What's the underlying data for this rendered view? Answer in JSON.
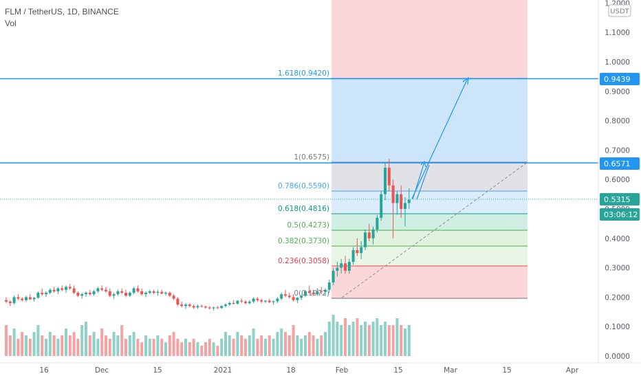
{
  "header": {
    "symbol_line": "FLM / TetherUS, 1D, BINANCE",
    "volume_label": "Vol"
  },
  "currency_badge": "USDT",
  "price_scale": {
    "ticks": [
      "1.2000",
      "1.1000",
      "1.0000",
      "0.9000",
      "0.8000",
      "0.7000",
      "0.6000",
      "0.5000",
      "0.4000",
      "0.3000",
      "0.2000",
      "0.1000",
      "0.0000"
    ],
    "tags": [
      {
        "text": "0.9439",
        "color": "#2196f3"
      },
      {
        "text": "0.6571",
        "color": "#2196f3"
      },
      {
        "text": "0.5315",
        "color": "#26a69a"
      },
      {
        "text": "03:06:12",
        "color": "#26a69a"
      }
    ]
  },
  "time_scale": {
    "labels": [
      "16",
      "Dec",
      "15",
      "2021",
      "18",
      "Feb",
      "15",
      "Mar",
      "15",
      "Apr"
    ]
  },
  "fib_levels": [
    {
      "label": "1.618(0.9420)",
      "color": "#2196f3"
    },
    {
      "label": "1(0.6575)",
      "color": "#787b86"
    },
    {
      "label": "0.786(0.5590)",
      "color": "#42a5f5"
    },
    {
      "label": "0.618(0.4816)",
      "color": "#089981"
    },
    {
      "label": "0.5(0.4273)",
      "color": "#4caf50"
    },
    {
      "label": "0.382(0.3730)",
      "color": "#4caf50"
    },
    {
      "label": "0.236(0.3058)",
      "color": "#f23645"
    },
    {
      "label": "0(0.1972)",
      "color": "#787b86"
    }
  ],
  "colors": {
    "up": "#26a69a",
    "down": "#ef5350",
    "accent": "#2196f3"
  },
  "chart_data": {
    "type": "candlestick",
    "x_start": "2020-11-04",
    "candles": [
      [
        0.19,
        0.2,
        0.18,
        0.185
      ],
      [
        0.185,
        0.19,
        0.17,
        0.18
      ],
      [
        0.18,
        0.205,
        0.175,
        0.2
      ],
      [
        0.2,
        0.21,
        0.19,
        0.195
      ],
      [
        0.195,
        0.2,
        0.185,
        0.19
      ],
      [
        0.19,
        0.205,
        0.185,
        0.2
      ],
      [
        0.2,
        0.21,
        0.19,
        0.193
      ],
      [
        0.193,
        0.2,
        0.185,
        0.198
      ],
      [
        0.198,
        0.22,
        0.195,
        0.215
      ],
      [
        0.215,
        0.23,
        0.205,
        0.21
      ],
      [
        0.21,
        0.22,
        0.2,
        0.215
      ],
      [
        0.215,
        0.23,
        0.21,
        0.225
      ],
      [
        0.225,
        0.235,
        0.215,
        0.22
      ],
      [
        0.22,
        0.235,
        0.21,
        0.23
      ],
      [
        0.23,
        0.24,
        0.22,
        0.225
      ],
      [
        0.225,
        0.24,
        0.215,
        0.235
      ],
      [
        0.235,
        0.245,
        0.225,
        0.23
      ],
      [
        0.23,
        0.24,
        0.21,
        0.215
      ],
      [
        0.215,
        0.22,
        0.2,
        0.205
      ],
      [
        0.205,
        0.215,
        0.195,
        0.21
      ],
      [
        0.21,
        0.22,
        0.2,
        0.215
      ],
      [
        0.215,
        0.225,
        0.205,
        0.21
      ],
      [
        0.21,
        0.225,
        0.205,
        0.22
      ],
      [
        0.22,
        0.235,
        0.215,
        0.23
      ],
      [
        0.23,
        0.24,
        0.22,
        0.225
      ],
      [
        0.225,
        0.235,
        0.215,
        0.22
      ],
      [
        0.22,
        0.23,
        0.2,
        0.205
      ],
      [
        0.205,
        0.215,
        0.195,
        0.21
      ],
      [
        0.21,
        0.225,
        0.205,
        0.22
      ],
      [
        0.22,
        0.23,
        0.21,
        0.215
      ],
      [
        0.215,
        0.225,
        0.2,
        0.205
      ],
      [
        0.205,
        0.22,
        0.2,
        0.215
      ],
      [
        0.215,
        0.235,
        0.21,
        0.23
      ],
      [
        0.23,
        0.24,
        0.215,
        0.22
      ],
      [
        0.22,
        0.23,
        0.205,
        0.21
      ],
      [
        0.21,
        0.22,
        0.2,
        0.215
      ],
      [
        0.215,
        0.225,
        0.21,
        0.22
      ],
      [
        0.22,
        0.225,
        0.21,
        0.215
      ],
      [
        0.215,
        0.225,
        0.205,
        0.218
      ],
      [
        0.218,
        0.225,
        0.21,
        0.212
      ],
      [
        0.212,
        0.22,
        0.205,
        0.215
      ],
      [
        0.215,
        0.22,
        0.2,
        0.205
      ],
      [
        0.205,
        0.21,
        0.19,
        0.195
      ],
      [
        0.195,
        0.2,
        0.17,
        0.175
      ],
      [
        0.175,
        0.185,
        0.165,
        0.17
      ],
      [
        0.17,
        0.18,
        0.16,
        0.175
      ],
      [
        0.175,
        0.18,
        0.165,
        0.17
      ],
      [
        0.17,
        0.175,
        0.16,
        0.165
      ],
      [
        0.165,
        0.175,
        0.16,
        0.17
      ],
      [
        0.17,
        0.175,
        0.165,
        0.168
      ],
      [
        0.168,
        0.172,
        0.16,
        0.165
      ],
      [
        0.165,
        0.17,
        0.158,
        0.162
      ],
      [
        0.162,
        0.168,
        0.155,
        0.165
      ],
      [
        0.165,
        0.17,
        0.16,
        0.163
      ],
      [
        0.163,
        0.172,
        0.16,
        0.17
      ],
      [
        0.17,
        0.18,
        0.165,
        0.175
      ],
      [
        0.175,
        0.185,
        0.17,
        0.18
      ],
      [
        0.18,
        0.19,
        0.175,
        0.178
      ],
      [
        0.178,
        0.19,
        0.175,
        0.188
      ],
      [
        0.188,
        0.195,
        0.18,
        0.185
      ],
      [
        0.185,
        0.19,
        0.175,
        0.18
      ],
      [
        0.18,
        0.19,
        0.175,
        0.185
      ],
      [
        0.185,
        0.2,
        0.18,
        0.195
      ],
      [
        0.195,
        0.2,
        0.185,
        0.19
      ],
      [
        0.19,
        0.195,
        0.18,
        0.185
      ],
      [
        0.185,
        0.19,
        0.18,
        0.188
      ],
      [
        0.188,
        0.195,
        0.18,
        0.183
      ],
      [
        0.183,
        0.19,
        0.175,
        0.186
      ],
      [
        0.186,
        0.2,
        0.18,
        0.195
      ],
      [
        0.195,
        0.215,
        0.19,
        0.21
      ],
      [
        0.21,
        0.225,
        0.2,
        0.205
      ],
      [
        0.205,
        0.215,
        0.195,
        0.2
      ],
      [
        0.2,
        0.21,
        0.185,
        0.19
      ],
      [
        0.19,
        0.2,
        0.18,
        0.198
      ],
      [
        0.198,
        0.21,
        0.19,
        0.205
      ],
      [
        0.205,
        0.225,
        0.2,
        0.22
      ],
      [
        0.22,
        0.24,
        0.21,
        0.215
      ],
      [
        0.215,
        0.225,
        0.205,
        0.21
      ],
      [
        0.21,
        0.23,
        0.205,
        0.22
      ],
      [
        0.22,
        0.235,
        0.21,
        0.218
      ],
      [
        0.218,
        0.23,
        0.205,
        0.225
      ],
      [
        0.225,
        0.26,
        0.215,
        0.25
      ],
      [
        0.25,
        0.3,
        0.24,
        0.29
      ],
      [
        0.29,
        0.32,
        0.27,
        0.3
      ],
      [
        0.3,
        0.33,
        0.28,
        0.315
      ],
      [
        0.315,
        0.34,
        0.28,
        0.29
      ],
      [
        0.29,
        0.33,
        0.28,
        0.32
      ],
      [
        0.32,
        0.37,
        0.31,
        0.36
      ],
      [
        0.36,
        0.4,
        0.34,
        0.35
      ],
      [
        0.35,
        0.39,
        0.33,
        0.37
      ],
      [
        0.37,
        0.43,
        0.36,
        0.42
      ],
      [
        0.42,
        0.45,
        0.39,
        0.4
      ],
      [
        0.4,
        0.44,
        0.38,
        0.43
      ],
      [
        0.43,
        0.48,
        0.42,
        0.47
      ],
      [
        0.47,
        0.56,
        0.46,
        0.55
      ],
      [
        0.55,
        0.66,
        0.53,
        0.64
      ],
      [
        0.64,
        0.67,
        0.56,
        0.58
      ],
      [
        0.58,
        0.6,
        0.4,
        0.52
      ],
      [
        0.52,
        0.56,
        0.48,
        0.55
      ],
      [
        0.55,
        0.58,
        0.47,
        0.5
      ],
      [
        0.5,
        0.54,
        0.44,
        0.52
      ],
      [
        0.52,
        0.57,
        0.5,
        0.5315
      ]
    ],
    "volumes": [
      0.09,
      0.06,
      0.08,
      0.05,
      0.07,
      0.06,
      0.05,
      0.07,
      0.09,
      0.06,
      0.05,
      0.07,
      0.06,
      0.05,
      0.06,
      0.08,
      0.06,
      0.07,
      0.05,
      0.09,
      0.1,
      0.06,
      0.07,
      0.05,
      0.08,
      0.06,
      0.05,
      0.07,
      0.06,
      0.09,
      0.05,
      0.06,
      0.07,
      0.05,
      0.04,
      0.06,
      0.05,
      0.05,
      0.06,
      0.05,
      0.04,
      0.06,
      0.07,
      0.05,
      0.04,
      0.05,
      0.04,
      0.05,
      0.04,
      0.03,
      0.04,
      0.05,
      0.04,
      0.03,
      0.05,
      0.07,
      0.06,
      0.05,
      0.07,
      0.06,
      0.05,
      0.06,
      0.08,
      0.05,
      0.06,
      0.05,
      0.06,
      0.05,
      0.07,
      0.08,
      0.07,
      0.06,
      0.09,
      0.06,
      0.05,
      0.06,
      0.07,
      0.06,
      0.05,
      0.06,
      0.07,
      0.1,
      0.12,
      0.1,
      0.09,
      0.11,
      0.09,
      0.1,
      0.11,
      0.09,
      0.1,
      0.09,
      0.1,
      0.11,
      0.09,
      0.1,
      0.09,
      0.09,
      0.11,
      0.09,
      0.08,
      0.09,
      0.08
    ],
    "y_range": [
      0.0,
      1.2
    ],
    "last_price": 0.5315
  }
}
